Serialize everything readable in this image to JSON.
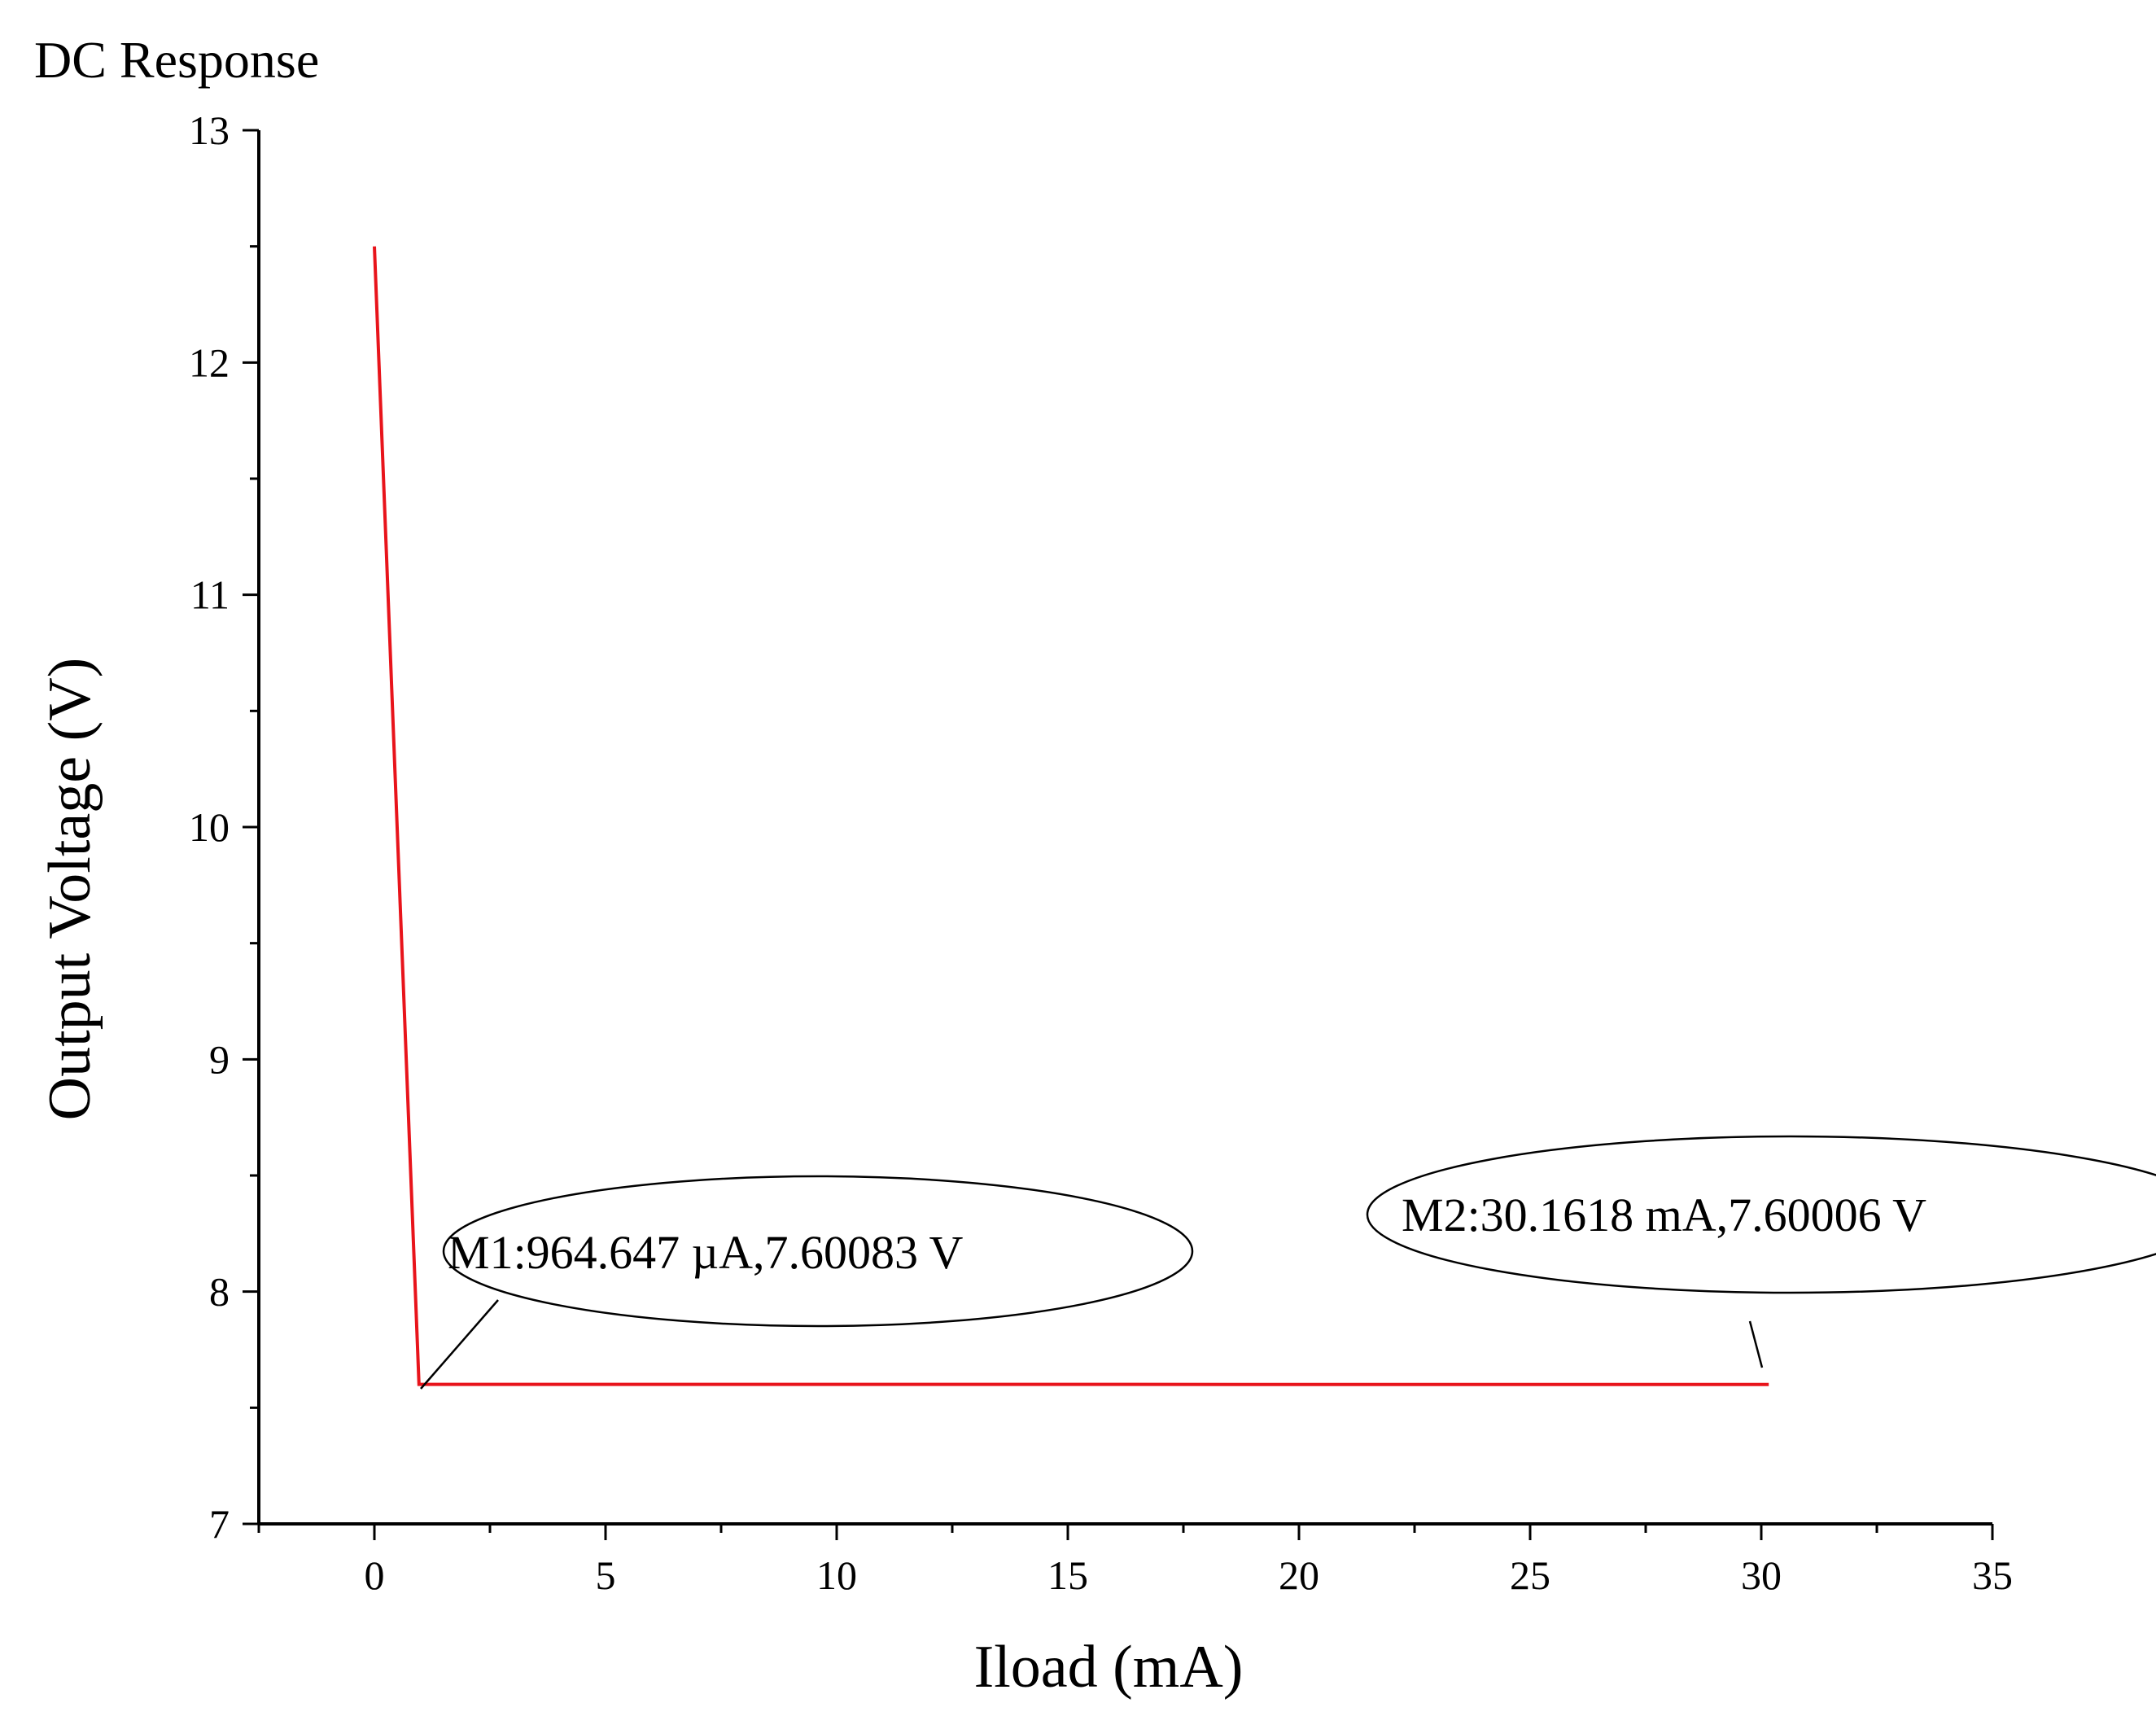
{
  "chart_data": {
    "type": "line",
    "title": "DC Response",
    "xlabel": "Iload (mA)",
    "ylabel": "Output Voltage (V)",
    "xlim": [
      -2.5,
      35
    ],
    "ylim": [
      7,
      13
    ],
    "xticks": [
      0,
      5,
      10,
      15,
      20,
      25,
      30,
      35
    ],
    "yticks": [
      7,
      8,
      9,
      10,
      11,
      12,
      13
    ],
    "grid": false,
    "series": [
      {
        "name": "",
        "color": "#e8141b",
        "x": [
          0,
          0.964647,
          30.1618
        ],
        "y": [
          12.5,
          7.60083,
          7.60006
        ]
      }
    ],
    "annotations": [
      {
        "label": "M1:964.647 µA,7.60083 V",
        "x": 0.964647,
        "y": 7.60083
      },
      {
        "label": "M2:30.1618 mA,7.60006 V",
        "x": 30.1618,
        "y": 7.60006
      }
    ]
  }
}
